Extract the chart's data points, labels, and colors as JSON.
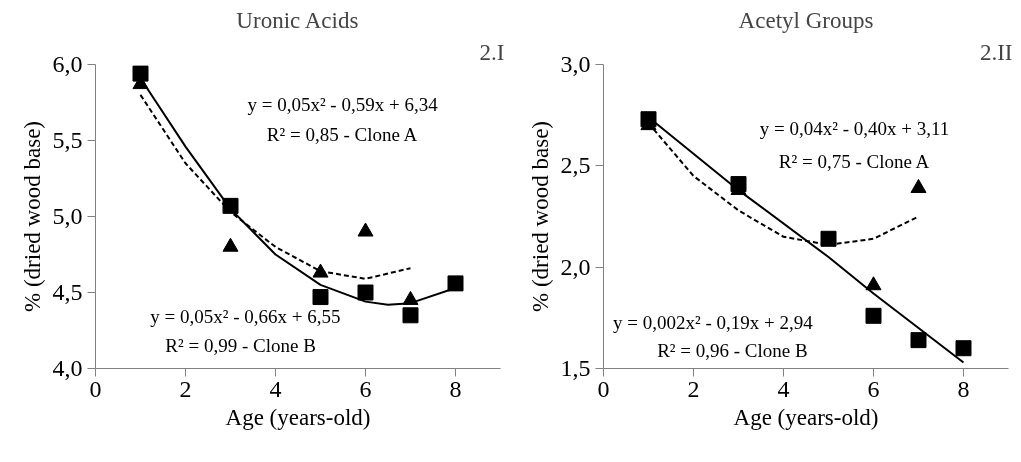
{
  "chart_data": [
    {
      "type": "scatter",
      "title": "Uronic Acids",
      "xlabel": "Age (years-old)",
      "ylabel": "% (dried wood base)",
      "xlim": [
        0,
        9
      ],
      "xticks": [
        0,
        2,
        4,
        6,
        8
      ],
      "ylim": [
        4,
        6
      ],
      "yticks": [
        {
          "value": 4,
          "label": "4,0"
        },
        {
          "value": 4.5,
          "label": "4,5"
        },
        {
          "value": 5,
          "label": "5,0"
        },
        {
          "value": 5.5,
          "label": "5,5"
        },
        {
          "value": 6,
          "label": "6,0"
        }
      ],
      "grid": false,
      "annotations": [
        "2.I",
        "y = 0,05x² - 0,59x + 6,34",
        "R² = 0,85 - Clone A",
        "y = 0,05x² - 0,66x + 6,55",
        "R² = 0,99  -  Clone B"
      ],
      "series": [
        {
          "type": "line",
          "color": "#000000",
          "line_style": "dashed",
          "x": [
            1,
            2,
            3,
            4,
            5,
            6,
            7
          ],
          "values": [
            5.8,
            5.35,
            5.03,
            4.8,
            4.64,
            4.59,
            4.66
          ]
        },
        {
          "type": "line",
          "color": "#000000",
          "line_style": "solid",
          "x": [
            1,
            2,
            3,
            4,
            5,
            6,
            6.5,
            7,
            8
          ],
          "values": [
            5.91,
            5.46,
            5.05,
            4.75,
            4.55,
            4.44,
            4.42,
            4.43,
            4.53
          ]
        },
        {
          "color": "#000000",
          "marker": "triangle",
          "x": [
            1,
            3,
            5,
            6,
            7
          ],
          "values": [
            5.87,
            4.8,
            4.63,
            4.9,
            4.45
          ]
        },
        {
          "color": "#000000",
          "marker": "square",
          "x": [
            1,
            3,
            5,
            6,
            7,
            8
          ],
          "values": [
            5.94,
            5.07,
            4.47,
            4.5,
            4.35,
            4.56
          ]
        }
      ]
    },
    {
      "type": "scatter",
      "title": "Acetyl Groups",
      "xlabel": "Age (years-old)",
      "ylabel": "% (dried wood base)",
      "xlim": [
        0,
        9
      ],
      "xticks": [
        0,
        2,
        4,
        6,
        8
      ],
      "ylim": [
        1.5,
        3
      ],
      "yticks": [
        {
          "value": 1.5,
          "label": "1,5"
        },
        {
          "value": 2,
          "label": "2,0"
        },
        {
          "value": 2.5,
          "label": "2,5"
        },
        {
          "value": 3,
          "label": "3,0"
        }
      ],
      "grid": false,
      "annotations": [
        "2.II",
        "y = 0,04x² - 0,40x + 3,11",
        "R² = 0,75 - Clone A",
        "y = 0,002x² - 0,19x + 2,94",
        "R² = 0,96  -  Clone B"
      ],
      "series": [
        {
          "type": "line",
          "color": "#000000",
          "line_style": "dashed",
          "x": [
            1,
            2,
            3,
            4,
            5,
            6,
            7
          ],
          "values": [
            2.71,
            2.45,
            2.28,
            2.15,
            2.11,
            2.14,
            2.25
          ]
        },
        {
          "type": "line",
          "color": "#000000",
          "line_style": "solid",
          "x": [
            1,
            3,
            5,
            6,
            7,
            8
          ],
          "values": [
            2.74,
            2.38,
            2.05,
            1.87,
            1.7,
            1.53
          ]
        },
        {
          "color": "#000000",
          "marker": "triangle",
          "x": [
            1,
            3,
            5,
            6,
            7
          ],
          "values": [
            2.7,
            2.38,
            null,
            1.91,
            2.39
          ]
        },
        {
          "color": "#000000",
          "marker": "square",
          "x": [
            1,
            3,
            5,
            6,
            7,
            8
          ],
          "values": [
            2.73,
            2.41,
            2.14,
            1.76,
            1.64,
            1.6
          ]
        }
      ]
    }
  ]
}
